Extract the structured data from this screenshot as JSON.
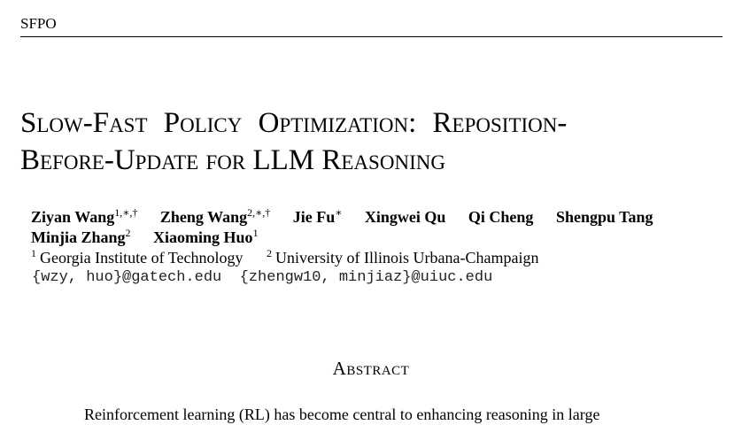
{
  "header": {
    "running_title": "SFPO"
  },
  "title": {
    "line1": "Slow-Fast Policy Optimization: Reposition-",
    "line2": "Before-Update for LLM Reasoning"
  },
  "authors": {
    "row1": [
      {
        "name": "Ziyan Wang",
        "marks": "1,∗,†"
      },
      {
        "name": "Zheng Wang",
        "marks": "2,∗,†"
      },
      {
        "name": "Jie Fu",
        "marks": "∗"
      },
      {
        "name": "Xingwei Qu",
        "marks": ""
      },
      {
        "name": "Qi Cheng",
        "marks": ""
      },
      {
        "name": "Shengpu Tang",
        "marks": ""
      }
    ],
    "row2": [
      {
        "name": "Minjia Zhang",
        "marks": "2"
      },
      {
        "name": "Xiaoming Huo",
        "marks": "1"
      }
    ]
  },
  "affiliations": [
    {
      "mark": "1",
      "text": "Georgia Institute of Technology"
    },
    {
      "mark": "2",
      "text": "University of Illinois Urbana-Champaign"
    }
  ],
  "emails": "{wzy, huo}@gatech.edu  {zhengw10, minjiaz}@uiuc.edu",
  "abstract": {
    "heading": "Abstract",
    "first_line": "Reinforcement learning (RL) has become central to enhancing reasoning in large"
  }
}
